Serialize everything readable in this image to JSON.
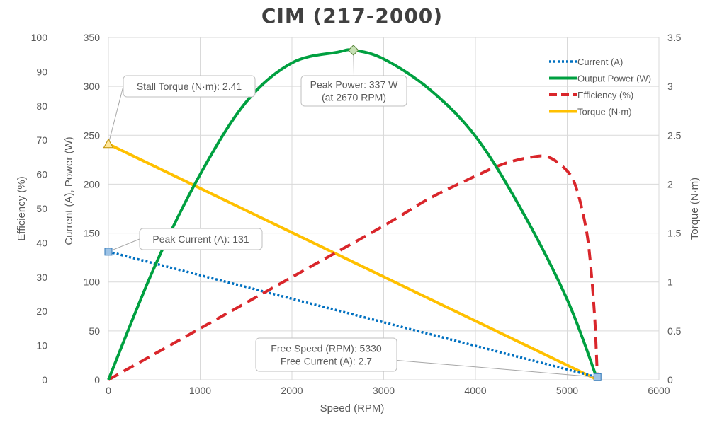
{
  "chart_data": {
    "type": "line",
    "title": "CIM (217-2000)",
    "xlabel": "Speed (RPM)",
    "y_left_outer_label": "Efficiency (%)",
    "y_left_label": "Current (A), Power (W)",
    "y_right_label": "Torque (N·m)",
    "xlim": [
      0,
      6000
    ],
    "x_ticks": [
      "0",
      "1000",
      "2000",
      "3000",
      "4000",
      "5000",
      "6000"
    ],
    "y_left_lim": [
      0,
      350
    ],
    "y_left_ticks": [
      "0",
      "50",
      "100",
      "150",
      "200",
      "250",
      "300",
      "350"
    ],
    "y_eff_lim": [
      0,
      100
    ],
    "y_eff_ticks": [
      "0",
      "10",
      "20",
      "30",
      "40",
      "50",
      "60",
      "70",
      "80",
      "90",
      "100"
    ],
    "y_right_lim": [
      0,
      3.5
    ],
    "y_right_ticks": [
      "0",
      "0.5",
      "1",
      "1.5",
      "2",
      "2.5",
      "3",
      "3.5"
    ],
    "grid": true,
    "legend_position": "top-right",
    "series": [
      {
        "name": "Current (A)",
        "axis": "left",
        "color": "#0070C0",
        "style": "dotted",
        "x": [
          0,
          5330
        ],
        "y": [
          131,
          2.7
        ]
      },
      {
        "name": "Output Power (W)",
        "axis": "left",
        "color": "#00A040",
        "style": "solid",
        "x": [
          0,
          500,
          1000,
          1500,
          2000,
          2500,
          2670,
          3000,
          3500,
          4000,
          4500,
          5000,
          5330
        ],
        "y": [
          0,
          115,
          210,
          284,
          324,
          335,
          337,
          328,
          297,
          249,
          174,
          82,
          0
        ]
      },
      {
        "name": "Efficiency (%)",
        "axis": "efficiency",
        "color": "#D9262B",
        "style": "dashed",
        "x": [
          0,
          1000,
          2000,
          3000,
          3500,
          4000,
          4300,
          4600,
          4800,
          5000,
          5100,
          5200,
          5250,
          5300,
          5330
        ],
        "y": [
          0,
          15,
          30,
          45,
          53,
          59.5,
          63,
          65,
          65,
          61,
          56,
          45,
          35,
          18,
          0
        ]
      },
      {
        "name": "Torque (N·m)",
        "axis": "right",
        "color": "#FFC000",
        "style": "solid",
        "x": [
          0,
          5330
        ],
        "y": [
          2.41,
          0
        ]
      }
    ],
    "markers": [
      {
        "series": "Torque (N·m)",
        "axis": "right",
        "x": 0,
        "y": 2.41,
        "shape": "triangle",
        "fill": "#FFE699",
        "stroke": "#BF9000"
      },
      {
        "series": "Current (A)",
        "axis": "left",
        "x": 0,
        "y": 131,
        "shape": "square",
        "fill": "#9DC3E6",
        "stroke": "#2E75B6"
      },
      {
        "series": "Output Power (W)",
        "axis": "left",
        "x": 2670,
        "y": 337,
        "shape": "diamond",
        "fill": "#C6E0B4",
        "stroke": "#548235"
      },
      {
        "series": "Current (A)",
        "axis": "left",
        "x": 5330,
        "y": 2.7,
        "shape": "square",
        "fill": "#9DC3E6",
        "stroke": "#2E75B6"
      }
    ],
    "annotations": [
      {
        "lines": [
          "Stall Torque (N·m): 2.41"
        ],
        "target": 0
      },
      {
        "lines": [
          "Peak Power: 337 W",
          "(at 2670 RPM)"
        ],
        "target": 2
      },
      {
        "lines": [
          "Peak Current (A): 131"
        ],
        "target": 1
      },
      {
        "lines": [
          "Free Speed (RPM): 5330",
          "Free Current (A): 2.7"
        ],
        "target": 3
      }
    ]
  }
}
